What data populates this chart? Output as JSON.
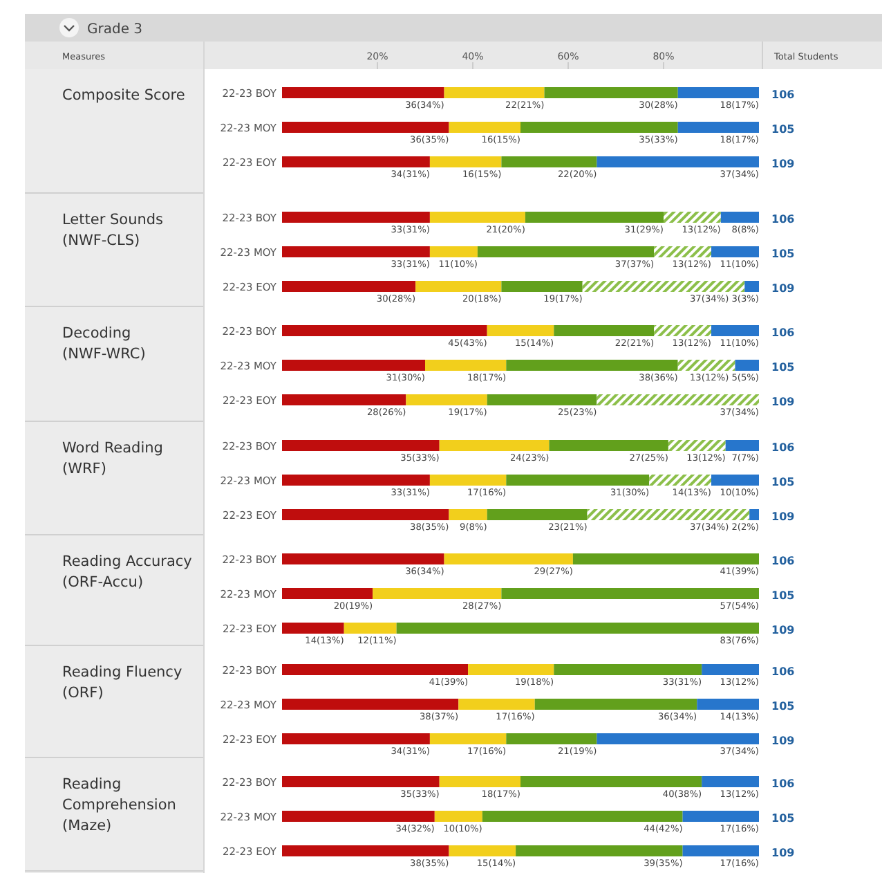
{
  "chart_data": [
    {
      "type": "bar",
      "orientation": "horizontal",
      "stacked": true,
      "title": "Composite Score",
      "annotations": [
        "Grade 3",
        "Measures",
        "Total Students",
        "106",
        "105",
        "109"
      ],
      "categories": [
        "22-23 BOY",
        "22-23 MOY",
        "22-23 EOY"
      ],
      "xlim": [
        0,
        100
      ],
      "xticks": [
        {
          "value": 20,
          "label": "20%"
        },
        {
          "value": 40,
          "label": "40%"
        },
        {
          "value": 60,
          "label": "60%"
        },
        {
          "value": 80,
          "label": "80%"
        }
      ],
      "series": [
        {
          "color": "#bf0d0d",
          "values": [
            34,
            35,
            31
          ],
          "value_labels": [
            "36(34%)",
            "36(35%)",
            "34(31%)"
          ]
        },
        {
          "color": "#f2cf1c",
          "values": [
            21,
            15,
            15
          ],
          "value_labels": [
            "22(21%)",
            "16(15%)",
            "16(15%)"
          ]
        },
        {
          "color": "#62a01c",
          "values": [
            28,
            33,
            20
          ],
          "value_labels": [
            "30(28%)",
            "35(33%)",
            "22(20%)"
          ]
        },
        {
          "color": "#2776cc",
          "values": [
            17,
            17,
            34
          ],
          "value_labels": [
            "18(17%)",
            "18(17%)",
            "37(34%)"
          ]
        }
      ]
    },
    {
      "type": "bar",
      "orientation": "horizontal",
      "stacked": true,
      "title": "Letter Sounds (NWF-CLS)",
      "annotations": [
        "106",
        "105",
        "109"
      ],
      "categories": [
        "22-23 BOY",
        "22-23 MOY",
        "22-23 EOY"
      ],
      "xlim": [
        0,
        100
      ],
      "tick_labels": "y",
      "series": [
        {
          "color": "#bf0d0d",
          "values": [
            31,
            31,
            28
          ],
          "value_labels": [
            "33(31%)",
            "33(31%)",
            "30(28%)"
          ]
        },
        {
          "color": "#f2cf1c",
          "values": [
            20,
            10,
            18
          ],
          "value_labels": [
            "21(20%)",
            "11(10%)",
            "20(18%)"
          ]
        },
        {
          "color": "#62a01c",
          "values": [
            29,
            37,
            17
          ],
          "value_labels": [
            "31(29%)",
            "37(37%)",
            "19(17%)"
          ]
        },
        {
          "color": "#8cbf4a",
          "values": [
            12,
            12,
            34
          ],
          "value_labels": [
            "13(12%)",
            "13(12%)",
            "37(34%)"
          ]
        },
        {
          "color": "#2776cc",
          "values": [
            8,
            10,
            3
          ],
          "value_labels": [
            "8(8%)",
            "11(10%)",
            "3(3%)"
          ]
        }
      ]
    },
    {
      "type": "bar",
      "orientation": "horizontal",
      "stacked": true,
      "title": "Decoding (NWF-WRC)",
      "annotations": [
        "106",
        "105",
        "109"
      ],
      "categories": [
        "22-23 BOY",
        "22-23 MOY",
        "22-23 EOY"
      ],
      "xlim": [
        0,
        100
      ],
      "tick_labels": "y",
      "series": [
        {
          "color": "#bf0d0d",
          "values": [
            43,
            30,
            26
          ],
          "value_labels": [
            "45(43%)",
            "31(30%)",
            "28(26%)"
          ]
        },
        {
          "color": "#f2cf1c",
          "values": [
            14,
            17,
            17
          ],
          "value_labels": [
            "15(14%)",
            "18(17%)",
            "19(17%)"
          ]
        },
        {
          "color": "#62a01c",
          "values": [
            21,
            36,
            23
          ],
          "value_labels": [
            "22(21%)",
            "38(36%)",
            "25(23%)"
          ]
        },
        {
          "color": "#8cbf4a",
          "values": [
            12,
            12,
            34
          ],
          "value_labels": [
            "13(12%)",
            "13(12%)",
            "37(34%)"
          ]
        },
        {
          "color": "#2776cc",
          "values": [
            10,
            5,
            null
          ],
          "value_labels": [
            "11(10%)",
            "5(5%)",
            null
          ]
        }
      ]
    },
    {
      "type": "bar",
      "orientation": "horizontal",
      "stacked": true,
      "title": "Word Reading (WRF)",
      "annotations": [
        "106",
        "105",
        "109"
      ],
      "categories": [
        "22-23 BOY",
        "22-23 MOY",
        "22-23 EOY"
      ],
      "xlim": [
        0,
        100
      ],
      "tick_labels": "y",
      "series": [
        {
          "color": "#bf0d0d",
          "values": [
            33,
            31,
            35
          ],
          "value_labels": [
            "35(33%)",
            "33(31%)",
            "38(35%)"
          ]
        },
        {
          "color": "#f2cf1c",
          "values": [
            23,
            16,
            8
          ],
          "value_labels": [
            "24(23%)",
            "17(16%)",
            "9(8%)"
          ]
        },
        {
          "color": "#62a01c",
          "values": [
            25,
            30,
            21
          ],
          "value_labels": [
            "27(25%)",
            "31(30%)",
            "23(21%)"
          ]
        },
        {
          "color": "#8cbf4a",
          "values": [
            12,
            13,
            34
          ],
          "value_labels": [
            "13(12%)",
            "14(13%)",
            "37(34%)"
          ]
        },
        {
          "color": "#2776cc",
          "values": [
            7,
            10,
            2
          ],
          "value_labels": [
            "7(7%)",
            "10(10%)",
            "2(2%)"
          ]
        }
      ]
    },
    {
      "type": "bar",
      "orientation": "horizontal",
      "stacked": true,
      "title": "Reading Accuracy (ORF-Accu)",
      "annotations": [
        "106",
        "105",
        "109"
      ],
      "categories": [
        "22-23 BOY",
        "22-23 MOY",
        "22-23 EOY"
      ],
      "xlim": [
        0,
        100
      ],
      "tick_labels": "y",
      "series": [
        {
          "color": "#bf0d0d",
          "values": [
            34,
            19,
            13
          ],
          "value_labels": [
            "36(34%)",
            "20(19%)",
            "14(13%)"
          ]
        },
        {
          "color": "#f2cf1c",
          "values": [
            27,
            27,
            11
          ],
          "value_labels": [
            "29(27%)",
            "28(27%)",
            "12(11%)"
          ]
        },
        {
          "color": "#62a01c",
          "values": [
            39,
            54,
            76
          ],
          "value_labels": [
            "41(39%)",
            "57(54%)",
            "83(76%)"
          ]
        }
      ]
    },
    {
      "type": "bar",
      "orientation": "horizontal",
      "stacked": true,
      "title": "Reading Fluency (ORF)",
      "annotations": [
        "106",
        "105",
        "109"
      ],
      "categories": [
        "22-23 BOY",
        "22-23 MOY",
        "22-23 EOY"
      ],
      "xlim": [
        0,
        100
      ],
      "tick_labels": "y",
      "series": [
        {
          "color": "#bf0d0d",
          "values": [
            39,
            37,
            31
          ],
          "value_labels": [
            "41(39%)",
            "38(37%)",
            "34(31%)"
          ]
        },
        {
          "color": "#f2cf1c",
          "values": [
            18,
            16,
            16
          ],
          "value_labels": [
            "19(18%)",
            "17(16%)",
            "17(16%)"
          ]
        },
        {
          "color": "#62a01c",
          "values": [
            31,
            34,
            19
          ],
          "value_labels": [
            "33(31%)",
            "36(34%)",
            "21(19%)"
          ]
        },
        {
          "color": "#2776cc",
          "values": [
            12,
            13,
            34
          ],
          "value_labels": [
            "13(12%)",
            "14(13%)",
            "37(34%)"
          ]
        }
      ]
    },
    {
      "type": "bar",
      "orientation": "horizontal",
      "stacked": true,
      "title": "Reading Comprehension (Maze)",
      "annotations": [
        "106",
        "105",
        "109"
      ],
      "categories": [
        "22-23 BOY",
        "22-23 MOY",
        "22-23 EOY"
      ],
      "xlim": [
        0,
        100
      ],
      "tick_labels": "y",
      "series": [
        {
          "color": "#bf0d0d",
          "values": [
            33,
            32,
            35
          ],
          "value_labels": [
            "35(33%)",
            "34(32%)",
            "38(35%)"
          ]
        },
        {
          "color": "#f2cf1c",
          "values": [
            17,
            10,
            14
          ],
          "value_labels": [
            "18(17%)",
            "10(10%)",
            "15(14%)"
          ]
        },
        {
          "color": "#62a01c",
          "values": [
            38,
            42,
            35
          ],
          "value_labels": [
            "40(38%)",
            "44(42%)",
            "39(35%)"
          ]
        },
        {
          "color": "#2776cc",
          "values": [
            12,
            16,
            16
          ],
          "value_labels": [
            "13(12%)",
            "17(16%)",
            "17(16%)"
          ]
        }
      ]
    }
  ]
}
